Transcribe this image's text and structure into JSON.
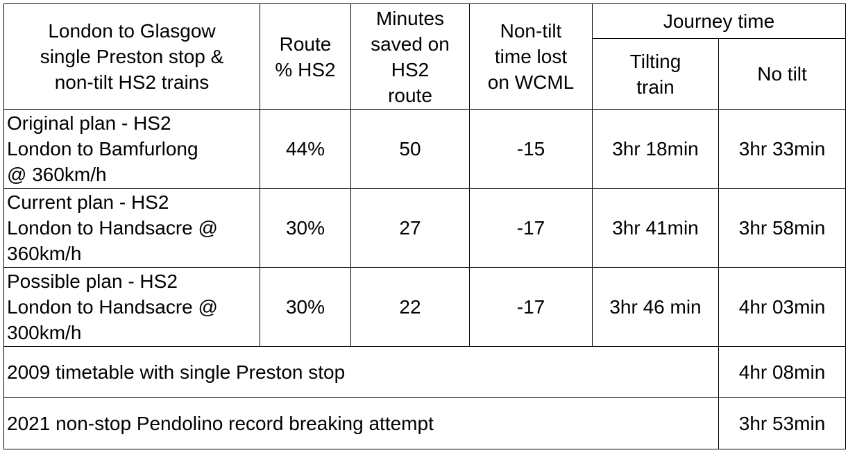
{
  "header": {
    "description": "London to Glasgow\nsingle Preston stop &\nnon-tilt HS2 trains",
    "route_pct": "Route\n% HS2",
    "minutes_saved": "Minutes\nsaved on\nHS2\nroute",
    "non_tilt_lost": "Non-tilt\ntime lost\non WCML",
    "journey_time": "Journey time",
    "tilting": "Tilting\ntrain",
    "no_tilt": "No tilt"
  },
  "rows": [
    {
      "plan": "Original plan - HS2\nLondon to Bamfurlong\n@ 360km/h",
      "route_pct": "44%",
      "minutes_saved": "50",
      "non_tilt_lost": "-15",
      "tilting": "3hr 18min",
      "no_tilt": "3hr 33min"
    },
    {
      "plan": "Current plan - HS2\nLondon to Handsacre @\n360km/h",
      "route_pct": "30%",
      "minutes_saved": "27",
      "non_tilt_lost": "-17",
      "tilting": "3hr 41min",
      "no_tilt": "3hr 58min"
    },
    {
      "plan": "Possible plan - HS2\nLondon to Handsacre @\n300km/h",
      "route_pct": "30%",
      "minutes_saved": "22",
      "non_tilt_lost": "-17",
      "tilting": "3hr 46 min",
      "no_tilt": "4hr 03min"
    }
  ],
  "summary_rows": [
    {
      "label": "2009 timetable with single Preston stop",
      "no_tilt": "4hr 08min"
    },
    {
      "label": "2021 non-stop Pendolino record breaking attempt",
      "no_tilt": "3hr 53min"
    }
  ]
}
